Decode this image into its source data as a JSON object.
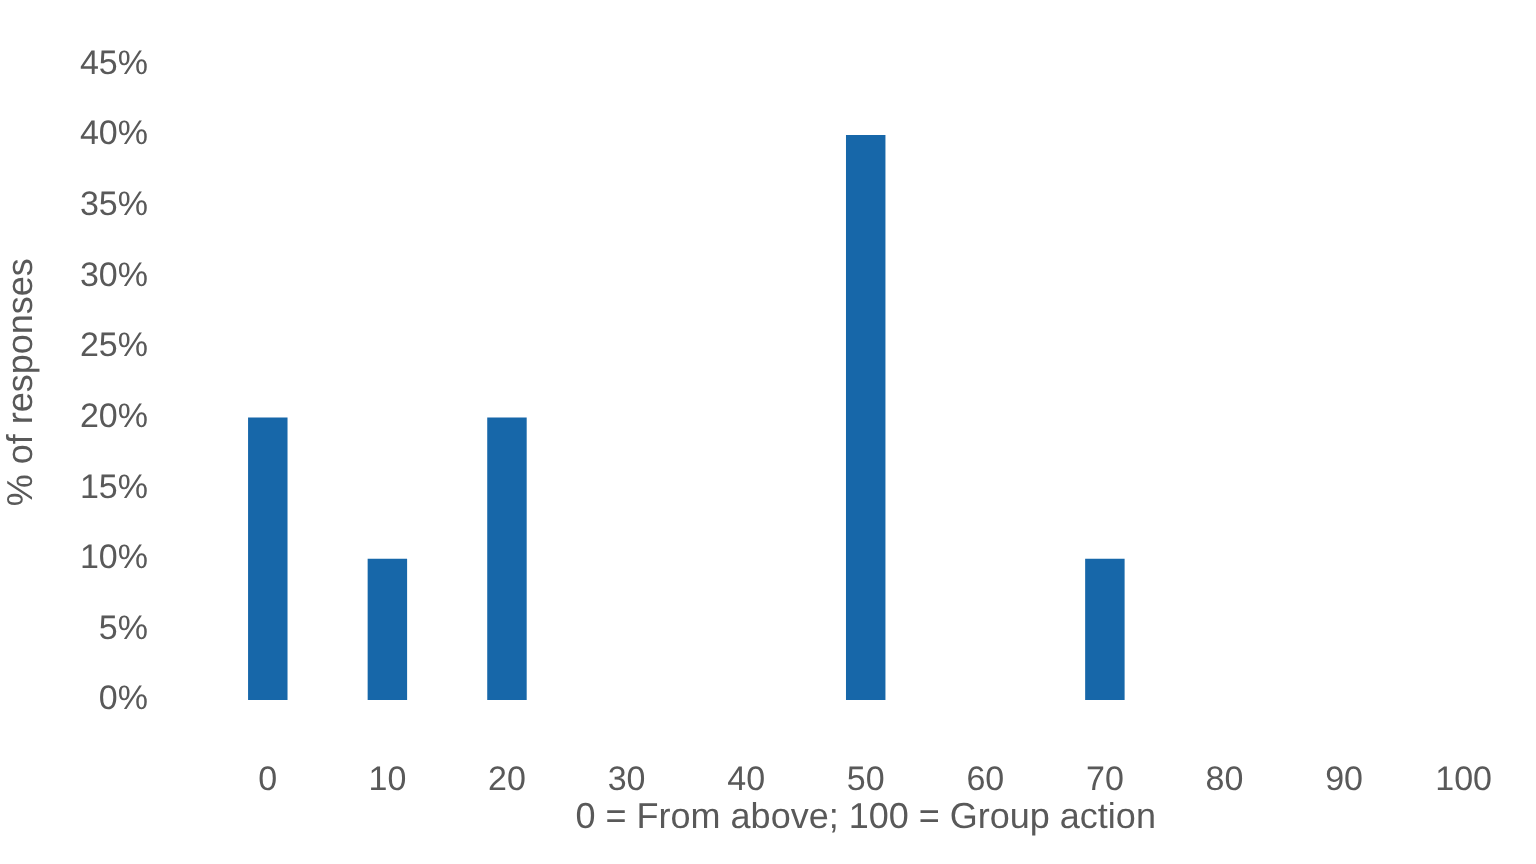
{
  "chart_data": {
    "type": "bar",
    "xlabel": "0 = From above; 100 = Group action",
    "ylabel": "% of responses",
    "categories": [
      "0",
      "10",
      "20",
      "30",
      "40",
      "50",
      "60",
      "70",
      "80",
      "90",
      "100"
    ],
    "values": [
      20,
      10,
      20,
      0,
      0,
      40,
      0,
      10,
      0,
      0,
      0
    ],
    "color": "#1767a9",
    "ylim": [
      0,
      45
    ],
    "yticks": [
      {
        "value": 0,
        "label": "0%"
      },
      {
        "value": 5,
        "label": "5%"
      },
      {
        "value": 10,
        "label": "10%"
      },
      {
        "value": 15,
        "label": "15%"
      },
      {
        "value": 20,
        "label": "20%"
      },
      {
        "value": 25,
        "label": "25%"
      },
      {
        "value": 30,
        "label": "30%"
      },
      {
        "value": 35,
        "label": "35%"
      },
      {
        "value": 40,
        "label": "40%"
      },
      {
        "value": 45,
        "label": "45%"
      }
    ],
    "grid": false,
    "legend": false
  }
}
